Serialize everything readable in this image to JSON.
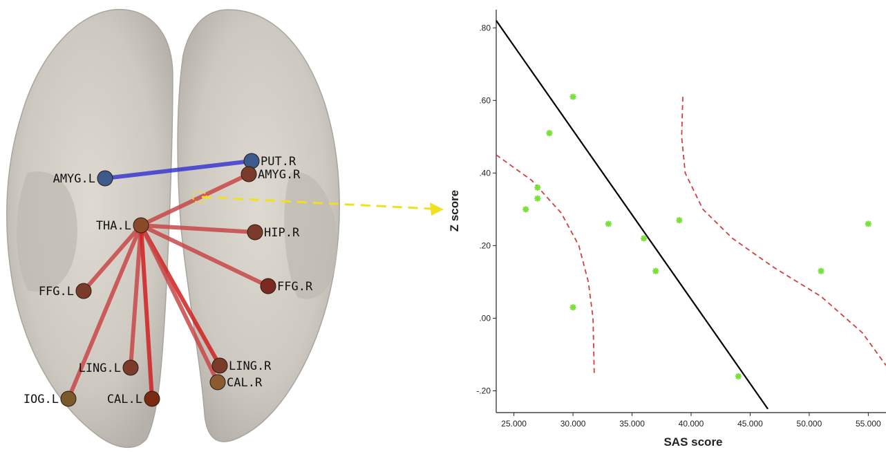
{
  "brain_network": {
    "nodes": [
      {
        "id": "AMYG.L",
        "label": "AMYG.L",
        "color": "#3d5a8c"
      },
      {
        "id": "PUT.R",
        "label": "PUT.R",
        "color": "#3d5a8c"
      },
      {
        "id": "AMYG.R",
        "label": "AMYG.R",
        "color": "#7a3b2a"
      },
      {
        "id": "THA.L",
        "label": "THA.L",
        "color": "#8a4a2a"
      },
      {
        "id": "HIP.R",
        "label": "HIP.R",
        "color": "#7a3b2a"
      },
      {
        "id": "FFG.L",
        "label": "FFG.L",
        "color": "#7a3b2a"
      },
      {
        "id": "FFG.R",
        "label": "FFG.R",
        "color": "#7a2a20"
      },
      {
        "id": "LING.L",
        "label": "LING.L",
        "color": "#7a3b2a"
      },
      {
        "id": "LING.R",
        "label": "LING.R",
        "color": "#7a3b2a"
      },
      {
        "id": "CAL.R",
        "label": "CAL.R",
        "color": "#8a5a30"
      },
      {
        "id": "IOG.L",
        "label": "IOG.L",
        "color": "#7a5a2a"
      },
      {
        "id": "CAL.L",
        "label": "CAL.L",
        "color": "#7a2a10"
      }
    ],
    "edges": [
      {
        "from": "AMYG.L",
        "to": "PUT.R",
        "color": "#3a3ad0"
      },
      {
        "from": "THA.L",
        "to": "AMYG.R",
        "color": "#c84848"
      },
      {
        "from": "THA.L",
        "to": "HIP.R",
        "color": "#c84848"
      },
      {
        "from": "THA.L",
        "to": "FFG.L",
        "color": "#c84848"
      },
      {
        "from": "THA.L",
        "to": "FFG.R",
        "color": "#c84848"
      },
      {
        "from": "THA.L",
        "to": "LING.L",
        "color": "#c84848"
      },
      {
        "from": "THA.L",
        "to": "LING.R",
        "color": "#d02020"
      },
      {
        "from": "THA.L",
        "to": "CAL.R",
        "color": "#c84848"
      },
      {
        "from": "THA.L",
        "to": "IOG.L",
        "color": "#c84848"
      },
      {
        "from": "THA.L",
        "to": "CAL.L",
        "color": "#d02020"
      }
    ],
    "highlight_color": "#f0e020"
  },
  "chart_data": {
    "type": "scatter",
    "xlabel": "SAS score",
    "ylabel": "Z score",
    "xlim": [
      23.5,
      56.5
    ],
    "ylim": [
      -0.26,
      0.85
    ],
    "x_ticks": [
      25,
      30,
      35,
      40,
      45,
      50,
      55
    ],
    "x_tick_labels": [
      "25.000",
      "30.000",
      "35.000",
      "40.000",
      "45.000",
      "50.000",
      "55.000"
    ],
    "y_ticks": [
      -0.2,
      0.0,
      0.2,
      0.4,
      0.6,
      0.8
    ],
    "y_tick_labels": [
      "-.20",
      ".00",
      ".20",
      ".40",
      ".60",
      ".80"
    ],
    "points": {
      "x": [
        26,
        27,
        27,
        28,
        30,
        30,
        33,
        36,
        37,
        39,
        44,
        51,
        55
      ],
      "y": [
        0.3,
        0.33,
        0.36,
        0.51,
        0.61,
        0.03,
        0.26,
        0.22,
        0.13,
        0.27,
        -0.16,
        0.13,
        0.26
      ],
      "color": "#7be03a"
    },
    "fit_line": {
      "x": [
        23.5,
        46.5
      ],
      "y": [
        0.82,
        -0.25
      ],
      "color": "#000000"
    },
    "ci_lower": {
      "x": [
        23.5,
        26.5,
        29.0,
        30.5,
        31.3,
        31.7,
        31.8
      ],
      "y": [
        0.45,
        0.38,
        0.29,
        0.2,
        0.1,
        0.0,
        -0.16
      ],
      "color": "#d04040"
    },
    "ci_upper": {
      "x": [
        39.3,
        39.2,
        39.5,
        41.0,
        43.5,
        47.0,
        51.0,
        54.5,
        56.5
      ],
      "y": [
        0.61,
        0.5,
        0.4,
        0.3,
        0.22,
        0.14,
        0.06,
        -0.04,
        -0.13
      ],
      "color": "#d04040"
    },
    "grid": false
  }
}
